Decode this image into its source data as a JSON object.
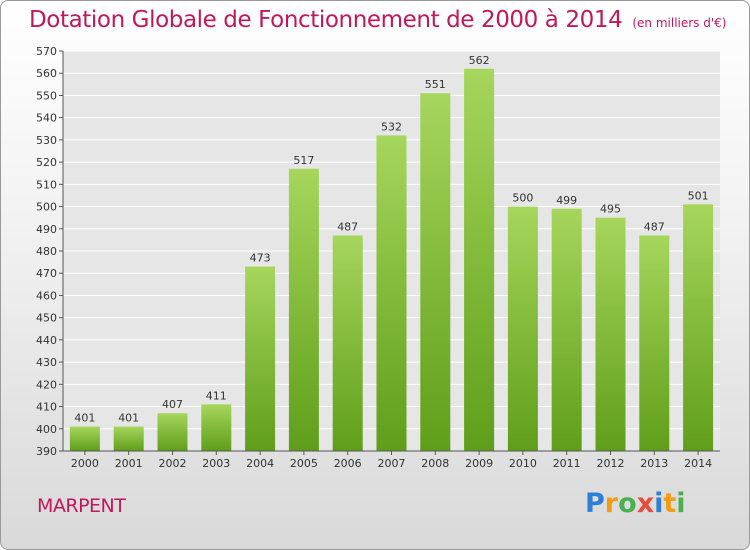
{
  "header": {
    "title": "Dotation Globale de Fonctionnement de 2000 à 2014",
    "unit": "(en milliers d'€)"
  },
  "footer": {
    "place": "MARPENT",
    "logo_letters": [
      "P",
      "r",
      "o",
      "x",
      "i",
      "t",
      "i"
    ],
    "logo_colors": [
      "#2e7fd6",
      "#f39c12",
      "#4caf50",
      "#e74c3c",
      "#2e7fd6",
      "#f39c12",
      "#4caf50"
    ]
  },
  "colors": {
    "title": "#c2185b",
    "bar_top": "#a6d65c",
    "bar_bottom": "#5f9e1a",
    "grid": "#ffffff",
    "axis": "#555555"
  },
  "chart_data": {
    "type": "bar",
    "title": "Dotation Globale de Fonctionnement de 2000 à 2014",
    "subtitle": "(en milliers d'€)",
    "categories": [
      "2000",
      "2001",
      "2002",
      "2003",
      "2004",
      "2005",
      "2006",
      "2007",
      "2008",
      "2009",
      "2010",
      "2011",
      "2012",
      "2013",
      "2014"
    ],
    "values": [
      401,
      401,
      407,
      411,
      473,
      517,
      487,
      532,
      551,
      562,
      500,
      499,
      495,
      487,
      501
    ],
    "ylim": [
      390,
      570
    ],
    "ytick_step": 10,
    "yticks": [
      "390",
      "400",
      "410",
      "420",
      "430",
      "440",
      "450",
      "460",
      "470",
      "480",
      "490",
      "500",
      "510",
      "520",
      "530",
      "540",
      "550",
      "560",
      "570"
    ],
    "grid": true,
    "legend": "none"
  }
}
